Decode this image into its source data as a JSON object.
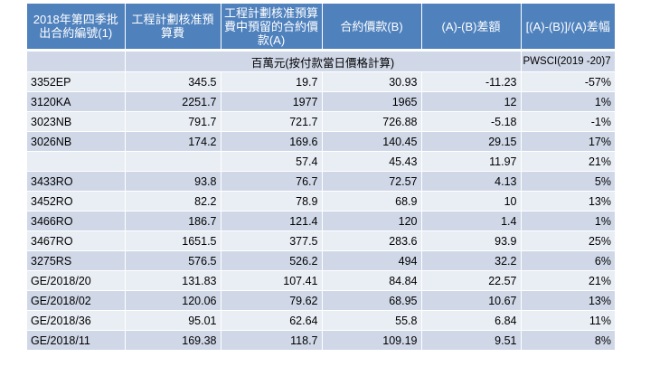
{
  "header": {
    "col1": "2018年第四季批出合約編號(1)",
    "col2": "工程計劃核准預算費",
    "col3": "工程計劃核准預算費中預留的合約價款(A)",
    "col4": "合約價款(B)",
    "col5": "(A)-(B)差額",
    "col6": "[(A)-(B)]/(A)差幅"
  },
  "unit_row": {
    "unit": "百萬元(按付款當日價格計算)",
    "pwsci": "PWSCI(2019 -20)7"
  },
  "rows": [
    {
      "id": "3352EP",
      "budget": "345.5",
      "a": "19.7",
      "b": "30.93",
      "diff": "-11.23",
      "pct": "-57%"
    },
    {
      "id": "3120KA",
      "budget": "2251.7",
      "a": "1977",
      "b": "1965",
      "diff": "12",
      "pct": "1%"
    },
    {
      "id": "3023NB",
      "budget": "791.7",
      "a": "721.7",
      "b": "726.88",
      "diff": "-5.18",
      "pct": "-1%"
    },
    {
      "id": "3026NB",
      "budget": "174.2",
      "a": "169.6",
      "b": "140.45",
      "diff": "29.15",
      "pct": "17%"
    },
    {
      "id": "",
      "budget": "",
      "a": "57.4",
      "b": "45.43",
      "diff": "11.97",
      "pct": "21%"
    },
    {
      "id": "3433RO",
      "budget": "93.8",
      "a": "76.7",
      "b": "72.57",
      "diff": "4.13",
      "pct": "5%"
    },
    {
      "id": "3452RO",
      "budget": "82.2",
      "a": "78.9",
      "b": "68.9",
      "diff": "10",
      "pct": "13%"
    },
    {
      "id": "3466RO",
      "budget": "186.7",
      "a": "121.4",
      "b": "120",
      "diff": "1.4",
      "pct": "1%"
    },
    {
      "id": "3467RO",
      "budget": "1651.5",
      "a": "377.5",
      "b": "283.6",
      "diff": "93.9",
      "pct": "25%"
    },
    {
      "id": "3275RS",
      "budget": "576.5",
      "a": "526.2",
      "b": "494",
      "diff": "32.2",
      "pct": "6%"
    },
    {
      "id": "GE/2018/20",
      "budget": "131.83",
      "a": "107.41",
      "b": "84.84",
      "diff": "22.57",
      "pct": "21%"
    },
    {
      "id": "GE/2018/02",
      "budget": "120.06",
      "a": "79.62",
      "b": "68.95",
      "diff": "10.67",
      "pct": "13%"
    },
    {
      "id": "GE/2018/36",
      "budget": "95.01",
      "a": "62.64",
      "b": "55.8",
      "diff": "6.84",
      "pct": "11%"
    },
    {
      "id": "GE/2018/11",
      "budget": "169.38",
      "a": "118.7",
      "b": "109.19",
      "diff": "9.51",
      "pct": "8%"
    }
  ],
  "colors": {
    "header_bg": "#4f81bd",
    "row_dark": "#d0d8e8",
    "row_light": "#e9edf4"
  }
}
